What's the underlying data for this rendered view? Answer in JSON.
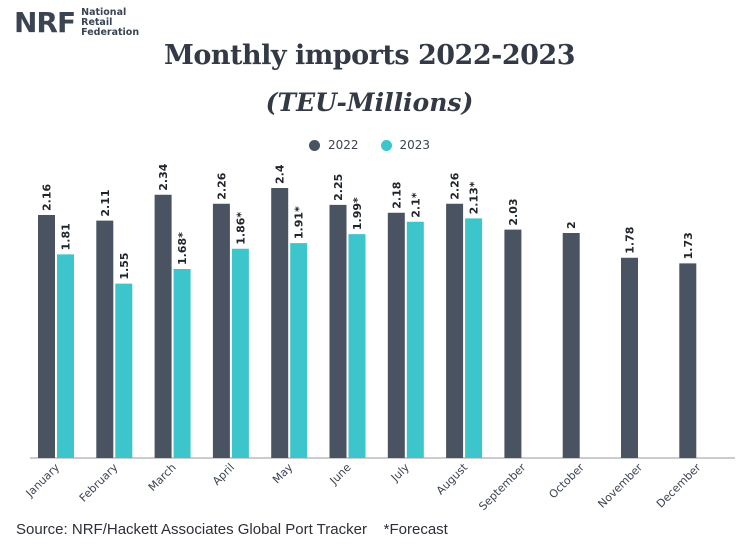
{
  "brand": {
    "mark": "NRF",
    "name_lines": [
      "National",
      "Retail",
      "Federation"
    ]
  },
  "header": {
    "title": "Monthly imports 2022-2023",
    "subtitle": "(TEU-Millions)"
  },
  "footer": {
    "source": "Source: NRF/Hackett Associates Global Port Tracker",
    "note": "*Forecast"
  },
  "colors": {
    "series_2022": "#4a5361",
    "series_2023": "#3cc6cc",
    "axis": "#999999",
    "label": "#1f242b"
  },
  "chart_data": {
    "type": "bar",
    "title": "Monthly imports 2022-2023",
    "subtitle": "(TEU-Millions)",
    "categories": [
      "January",
      "February",
      "March",
      "April",
      "May",
      "June",
      "July",
      "August",
      "September",
      "October",
      "November",
      "December"
    ],
    "ylim": [
      0,
      2.4
    ],
    "grid": false,
    "legend": "top-center",
    "series": [
      {
        "name": "2022",
        "values": [
          2.16,
          2.11,
          2.34,
          2.26,
          2.4,
          2.25,
          2.18,
          2.26,
          2.03,
          2,
          1.78,
          1.73
        ],
        "labels": [
          "2.16",
          "2.11",
          "2.34",
          "2.26",
          "2.4",
          "2.25",
          "2.18",
          "2.26",
          "2.03",
          "2",
          "1.78",
          "1.73"
        ]
      },
      {
        "name": "2023",
        "values": [
          1.81,
          1.55,
          1.68,
          1.86,
          1.91,
          1.99,
          2.1,
          2.13,
          null,
          null,
          null,
          null
        ],
        "labels": [
          "1.81",
          "1.55",
          "1.68*",
          "1.86*",
          "1.91*",
          "1.99*",
          "2.1*",
          "2.13*",
          null,
          null,
          null,
          null
        ]
      }
    ]
  }
}
